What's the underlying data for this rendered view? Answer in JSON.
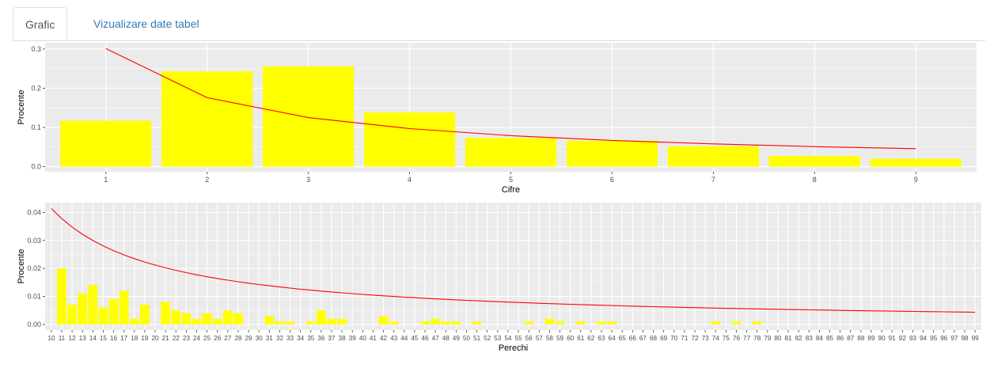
{
  "tabs": [
    {
      "label": "Grafic",
      "active": true
    },
    {
      "label": "Vizualizare date tabel",
      "active": false
    }
  ],
  "colors": {
    "bar": "#ffff00",
    "line": "#ff0000",
    "panel": "#ebebeb",
    "grid": "#ffffff"
  },
  "chart_data": [
    {
      "type": "bar",
      "xlabel": "Cifre",
      "ylabel": "Procente",
      "categories": [
        "1",
        "2",
        "3",
        "4",
        "5",
        "6",
        "7",
        "8",
        "9"
      ],
      "values": [
        0.117,
        0.243,
        0.256,
        0.138,
        0.073,
        0.066,
        0.052,
        0.027,
        0.02
      ],
      "line_values": [
        0.301,
        0.176,
        0.125,
        0.097,
        0.079,
        0.067,
        0.058,
        0.051,
        0.046
      ],
      "yticks": [
        "0.0",
        "0.1",
        "0.2",
        "0.3"
      ],
      "ylim": [
        -0.013,
        0.316
      ],
      "grid": true
    },
    {
      "type": "bar",
      "xlabel": "Perechi",
      "ylabel": "Procente",
      "categories": [
        "10",
        "11",
        "12",
        "13",
        "14",
        "15",
        "16",
        "17",
        "18",
        "19",
        "20",
        "21",
        "22",
        "23",
        "24",
        "25",
        "26",
        "27",
        "28",
        "29",
        "30",
        "31",
        "32",
        "33",
        "34",
        "35",
        "36",
        "37",
        "38",
        "39",
        "40",
        "41",
        "42",
        "43",
        "44",
        "45",
        "46",
        "47",
        "48",
        "49",
        "50",
        "51",
        "52",
        "53",
        "54",
        "55",
        "56",
        "57",
        "58",
        "59",
        "60",
        "61",
        "62",
        "63",
        "64",
        "65",
        "66",
        "67",
        "68",
        "69",
        "70",
        "71",
        "72",
        "73",
        "74",
        "75",
        "76",
        "77",
        "78",
        "79",
        "80",
        "81",
        "82",
        "83",
        "84",
        "85",
        "86",
        "87",
        "88",
        "89",
        "90",
        "91",
        "92",
        "93",
        "94",
        "95",
        "96",
        "97",
        "98",
        "99"
      ],
      "values": [
        0,
        0.02,
        0.007,
        0.011,
        0.014,
        0.006,
        0.009,
        0.012,
        0.002,
        0.007,
        0,
        0.008,
        0.005,
        0.004,
        0.002,
        0.004,
        0.002,
        0.005,
        0.004,
        0,
        0,
        0.003,
        0.001,
        0.001,
        0,
        0.001,
        0.005,
        0.002,
        0.002,
        0,
        0,
        0,
        0.003,
        0.001,
        0,
        0,
        0.001,
        0.002,
        0.001,
        0.001,
        0,
        0.001,
        0,
        0,
        0,
        0,
        0.001,
        0,
        0.002,
        0.001,
        0,
        0.001,
        0,
        0.001,
        0.001,
        0,
        0,
        0,
        0,
        0,
        0,
        0,
        0,
        0,
        0.001,
        0,
        0.001,
        0,
        0.001,
        0,
        0,
        0,
        0,
        0,
        0,
        0,
        0,
        0,
        0,
        0,
        0,
        0,
        0,
        0,
        0,
        0,
        0,
        0,
        0,
        0
      ],
      "line": "benford_second_order",
      "yticks": [
        "0.00",
        "0.01",
        "0.02",
        "0.03",
        "0.04"
      ],
      "ylim": [
        -0.002,
        0.0435
      ],
      "grid": true
    }
  ]
}
